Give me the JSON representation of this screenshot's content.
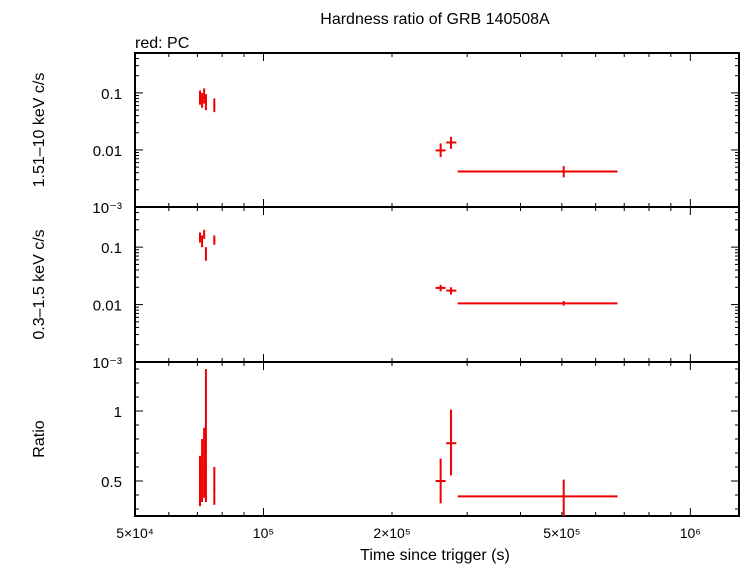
{
  "chart_data": {
    "title": "Hardness ratio of GRB 140508A",
    "subtitle": "red: PC",
    "xlabel": "Time since trigger (s)",
    "x_scale": "log",
    "xlim": [
      50000,
      1300000
    ],
    "x_ticks": [
      {
        "value": 50000,
        "label": "5×10⁴"
      },
      {
        "value": 100000,
        "label": "10⁵"
      },
      {
        "value": 200000,
        "label": "2×10⁵"
      },
      {
        "value": 500000,
        "label": "5×10⁵"
      },
      {
        "value": 1000000,
        "label": "10⁶"
      }
    ],
    "series_color": "#ee0000",
    "panels": [
      {
        "id": "hard",
        "type": "scatter",
        "ylabel": "1.51–10 keV c/s",
        "y_scale": "log",
        "ylim": [
          0.001,
          0.5
        ],
        "y_ticks": [
          {
            "value": 0.1,
            "label": "0.1"
          },
          {
            "value": 0.01,
            "label": "0.01"
          },
          {
            "value": 0.001,
            "label": "10⁻³"
          }
        ],
        "points": [
          {
            "x": 71000,
            "xerr": [
              70700,
              71300
            ],
            "y": 0.085,
            "yerr": [
              0.062,
              0.11
            ]
          },
          {
            "x": 71800,
            "xerr": [
              71500,
              72100
            ],
            "y": 0.075,
            "yerr": [
              0.055,
              0.1
            ]
          },
          {
            "x": 72600,
            "xerr": [
              72300,
              72900
            ],
            "y": 0.09,
            "yerr": [
              0.065,
              0.12
            ]
          },
          {
            "x": 73300,
            "xerr": [
              73000,
              73600
            ],
            "y": 0.07,
            "yerr": [
              0.05,
              0.095
            ]
          },
          {
            "x": 76700,
            "xerr": [
              76300,
              77100
            ],
            "y": 0.06,
            "yerr": [
              0.046,
              0.08
            ]
          },
          {
            "x": 260000,
            "xerr": [
              253000,
              267000
            ],
            "y": 0.0098,
            "yerr": [
              0.0075,
              0.013
            ]
          },
          {
            "x": 275000,
            "xerr": [
              268000,
              283000
            ],
            "y": 0.0135,
            "yerr": [
              0.0105,
              0.017
            ]
          },
          {
            "x": 505000,
            "xerr": [
              285000,
              675000
            ],
            "y": 0.0042,
            "yerr": [
              0.0033,
              0.0052
            ]
          }
        ]
      },
      {
        "id": "soft",
        "type": "scatter",
        "ylabel": "0.3–1.5 keV c/s",
        "y_scale": "log",
        "ylim": [
          0.001,
          0.5
        ],
        "y_ticks": [
          {
            "value": 0.1,
            "label": "0.1"
          },
          {
            "value": 0.01,
            "label": "0.01"
          },
          {
            "value": 0.001,
            "label": "10⁻³"
          }
        ],
        "points": [
          {
            "x": 71000,
            "xerr": [
              70700,
              71300
            ],
            "y": 0.15,
            "yerr": [
              0.12,
              0.18
            ]
          },
          {
            "x": 71800,
            "xerr": [
              71500,
              72100
            ],
            "y": 0.13,
            "yerr": [
              0.1,
              0.16
            ]
          },
          {
            "x": 72600,
            "xerr": [
              72300,
              72900
            ],
            "y": 0.17,
            "yerr": [
              0.14,
              0.2
            ]
          },
          {
            "x": 73300,
            "xerr": [
              73000,
              73600
            ],
            "y": 0.075,
            "yerr": [
              0.058,
              0.1
            ]
          },
          {
            "x": 76700,
            "xerr": [
              76300,
              77100
            ],
            "y": 0.13,
            "yerr": [
              0.11,
              0.16
            ]
          },
          {
            "x": 260000,
            "xerr": [
              253000,
              267000
            ],
            "y": 0.0195,
            "yerr": [
              0.017,
              0.022
            ]
          },
          {
            "x": 275000,
            "xerr": [
              268000,
              283000
            ],
            "y": 0.0175,
            "yerr": [
              0.015,
              0.02
            ]
          },
          {
            "x": 505000,
            "xerr": [
              285000,
              675000
            ],
            "y": 0.0105,
            "yerr": [
              0.0096,
              0.0115
            ]
          }
        ]
      },
      {
        "id": "ratio",
        "type": "scatter",
        "ylabel": "Ratio",
        "y_scale": "linear",
        "ylim": [
          0.25,
          1.35
        ],
        "y_ticks": [
          {
            "value": 1,
            "label": "1"
          },
          {
            "value": 0.5,
            "label": "0.5"
          }
        ],
        "points": [
          {
            "x": 71000,
            "xerr": [
              70700,
              71300
            ],
            "y": 0.5,
            "yerr": [
              0.32,
              0.68
            ]
          },
          {
            "x": 71800,
            "xerr": [
              71500,
              72100
            ],
            "y": 0.55,
            "yerr": [
              0.35,
              0.8
            ]
          },
          {
            "x": 72600,
            "xerr": [
              72300,
              72900
            ],
            "y": 0.6,
            "yerr": [
              0.38,
              0.88
            ]
          },
          {
            "x": 73300,
            "xerr": [
              73000,
              73600
            ],
            "y": 0.75,
            "yerr": [
              0.35,
              1.3
            ]
          },
          {
            "x": 76700,
            "xerr": [
              76300,
              77100
            ],
            "y": 0.44,
            "yerr": [
              0.33,
              0.6
            ]
          },
          {
            "x": 260000,
            "xerr": [
              253000,
              267000
            ],
            "y": 0.5,
            "yerr": [
              0.34,
              0.66
            ]
          },
          {
            "x": 275000,
            "xerr": [
              268000,
              283000
            ],
            "y": 0.77,
            "yerr": [
              0.54,
              1.01
            ]
          },
          {
            "x": 505000,
            "xerr": [
              285000,
              675000
            ],
            "y": 0.39,
            "yerr": [
              0.25,
              0.51
            ]
          }
        ]
      }
    ]
  }
}
